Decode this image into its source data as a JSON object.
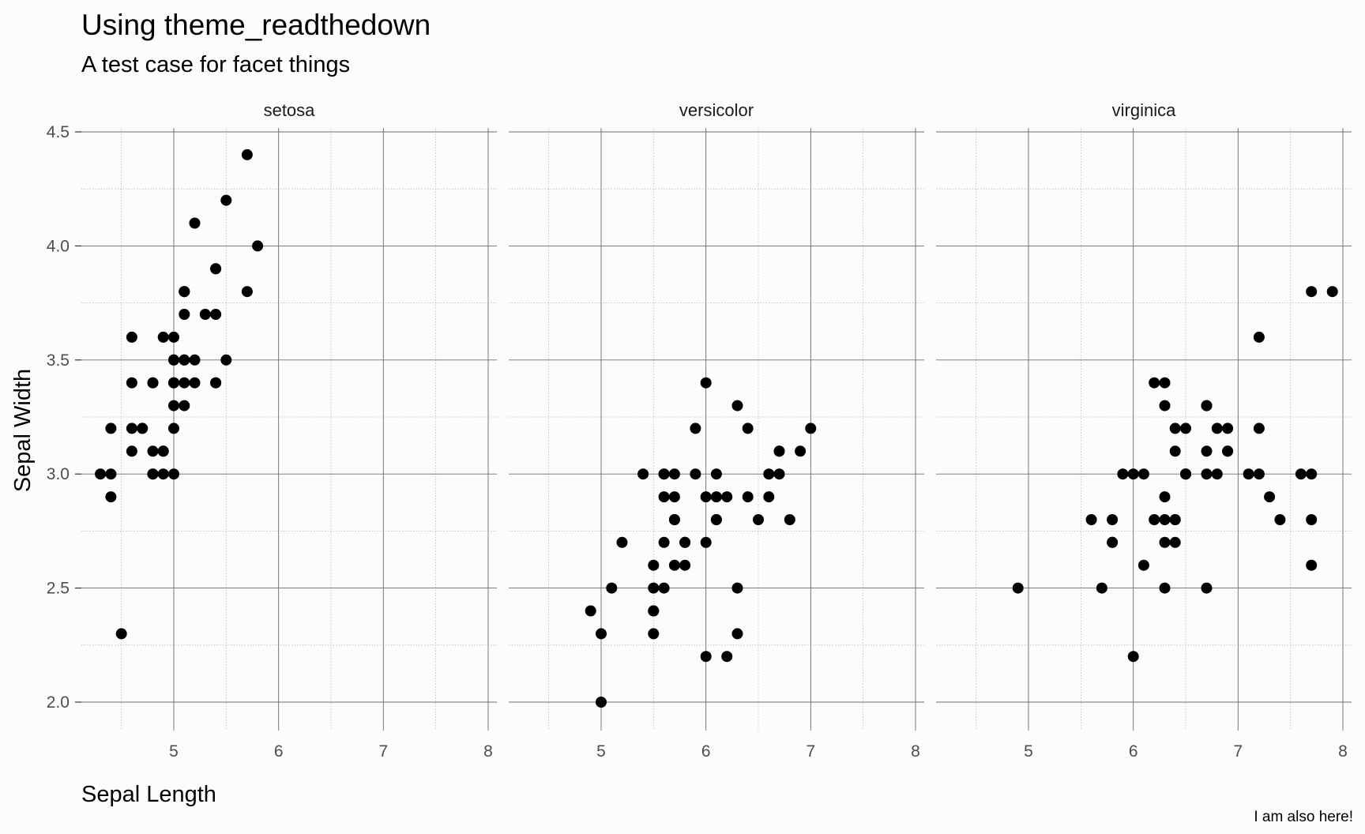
{
  "title": "Using theme_readthedown",
  "subtitle": "A test case for facet things",
  "caption": "I am also here!",
  "chart_data": {
    "type": "scatter",
    "title": "Using theme_readthedown",
    "subtitle": "A test case for facet things",
    "xlabel": "Sepal Length",
    "ylabel": "Sepal Width",
    "xlim": [
      4.3,
      8.0
    ],
    "ylim": [
      2.0,
      4.4
    ],
    "x_ticks": [
      5,
      6,
      7,
      8
    ],
    "y_ticks": [
      2.0,
      2.5,
      3.0,
      3.5,
      4.0,
      4.5
    ],
    "x_tick_labels": [
      "5",
      "6",
      "7",
      "8"
    ],
    "y_tick_labels": [
      "2.0",
      "2.5",
      "3.0",
      "3.5",
      "4.0",
      "4.5"
    ],
    "grid": true,
    "facets": [
      {
        "name": "setosa",
        "points": [
          [
            5.1,
            3.5
          ],
          [
            4.9,
            3.0
          ],
          [
            4.7,
            3.2
          ],
          [
            4.6,
            3.1
          ],
          [
            5.0,
            3.6
          ],
          [
            5.4,
            3.9
          ],
          [
            4.6,
            3.4
          ],
          [
            5.0,
            3.4
          ],
          [
            4.4,
            2.9
          ],
          [
            4.9,
            3.1
          ],
          [
            5.4,
            3.7
          ],
          [
            4.8,
            3.4
          ],
          [
            4.8,
            3.0
          ],
          [
            4.3,
            3.0
          ],
          [
            5.8,
            4.0
          ],
          [
            5.7,
            4.4
          ],
          [
            5.4,
            3.9
          ],
          [
            5.1,
            3.5
          ],
          [
            5.7,
            3.8
          ],
          [
            5.1,
            3.8
          ],
          [
            5.4,
            3.4
          ],
          [
            5.1,
            3.7
          ],
          [
            4.6,
            3.6
          ],
          [
            5.1,
            3.3
          ],
          [
            4.8,
            3.4
          ],
          [
            5.0,
            3.0
          ],
          [
            5.0,
            3.4
          ],
          [
            5.2,
            3.5
          ],
          [
            5.2,
            3.4
          ],
          [
            4.7,
            3.2
          ],
          [
            4.8,
            3.1
          ],
          [
            5.4,
            3.4
          ],
          [
            5.2,
            4.1
          ],
          [
            5.5,
            4.2
          ],
          [
            4.9,
            3.1
          ],
          [
            5.0,
            3.2
          ],
          [
            5.5,
            3.5
          ],
          [
            4.9,
            3.6
          ],
          [
            4.4,
            3.0
          ],
          [
            5.1,
            3.4
          ],
          [
            5.0,
            3.5
          ],
          [
            4.5,
            2.3
          ],
          [
            4.4,
            3.2
          ],
          [
            5.0,
            3.5
          ],
          [
            5.1,
            3.8
          ],
          [
            4.8,
            3.0
          ],
          [
            5.1,
            3.8
          ],
          [
            4.6,
            3.2
          ],
          [
            5.3,
            3.7
          ],
          [
            5.0,
            3.3
          ]
        ]
      },
      {
        "name": "versicolor",
        "points": [
          [
            7.0,
            3.2
          ],
          [
            6.4,
            3.2
          ],
          [
            6.9,
            3.1
          ],
          [
            5.5,
            2.3
          ],
          [
            6.5,
            2.8
          ],
          [
            5.7,
            2.8
          ],
          [
            6.3,
            3.3
          ],
          [
            4.9,
            2.4
          ],
          [
            6.6,
            2.9
          ],
          [
            5.2,
            2.7
          ],
          [
            5.0,
            2.0
          ],
          [
            5.9,
            3.0
          ],
          [
            6.0,
            2.2
          ],
          [
            6.1,
            2.9
          ],
          [
            5.6,
            2.9
          ],
          [
            6.7,
            3.1
          ],
          [
            5.6,
            3.0
          ],
          [
            5.8,
            2.7
          ],
          [
            6.2,
            2.2
          ],
          [
            5.6,
            2.5
          ],
          [
            5.9,
            3.2
          ],
          [
            6.1,
            2.8
          ],
          [
            6.3,
            2.5
          ],
          [
            6.1,
            2.8
          ],
          [
            6.4,
            2.9
          ],
          [
            6.6,
            3.0
          ],
          [
            6.8,
            2.8
          ],
          [
            6.7,
            3.0
          ],
          [
            6.0,
            2.9
          ],
          [
            5.7,
            2.6
          ],
          [
            5.5,
            2.4
          ],
          [
            5.5,
            2.4
          ],
          [
            5.8,
            2.7
          ],
          [
            6.0,
            2.7
          ],
          [
            5.4,
            3.0
          ],
          [
            6.0,
            3.4
          ],
          [
            6.7,
            3.1
          ],
          [
            6.3,
            2.3
          ],
          [
            5.6,
            3.0
          ],
          [
            5.5,
            2.5
          ],
          [
            5.5,
            2.6
          ],
          [
            6.1,
            3.0
          ],
          [
            5.8,
            2.6
          ],
          [
            5.0,
            2.3
          ],
          [
            5.6,
            2.7
          ],
          [
            5.7,
            3.0
          ],
          [
            5.7,
            2.9
          ],
          [
            6.2,
            2.9
          ],
          [
            5.1,
            2.5
          ],
          [
            5.7,
            2.8
          ]
        ]
      },
      {
        "name": "virginica",
        "points": [
          [
            6.3,
            3.3
          ],
          [
            5.8,
            2.7
          ],
          [
            7.1,
            3.0
          ],
          [
            6.3,
            2.9
          ],
          [
            6.5,
            3.0
          ],
          [
            7.6,
            3.0
          ],
          [
            4.9,
            2.5
          ],
          [
            7.3,
            2.9
          ],
          [
            6.7,
            2.5
          ],
          [
            7.2,
            3.6
          ],
          [
            6.5,
            3.2
          ],
          [
            6.4,
            2.7
          ],
          [
            6.8,
            3.0
          ],
          [
            5.7,
            2.5
          ],
          [
            5.8,
            2.8
          ],
          [
            6.4,
            3.2
          ],
          [
            6.5,
            3.0
          ],
          [
            7.7,
            3.8
          ],
          [
            7.7,
            2.6
          ],
          [
            6.0,
            2.2
          ],
          [
            6.9,
            3.2
          ],
          [
            5.6,
            2.8
          ],
          [
            7.7,
            2.8
          ],
          [
            6.3,
            2.7
          ],
          [
            6.7,
            3.3
          ],
          [
            7.2,
            3.2
          ],
          [
            6.2,
            2.8
          ],
          [
            6.1,
            3.0
          ],
          [
            6.4,
            2.8
          ],
          [
            7.2,
            3.0
          ],
          [
            7.4,
            2.8
          ],
          [
            7.9,
            3.8
          ],
          [
            6.4,
            2.8
          ],
          [
            6.3,
            2.8
          ],
          [
            6.1,
            2.6
          ],
          [
            7.7,
            3.0
          ],
          [
            6.3,
            3.4
          ],
          [
            6.4,
            3.1
          ],
          [
            6.0,
            3.0
          ],
          [
            6.9,
            3.1
          ],
          [
            6.7,
            3.1
          ],
          [
            6.9,
            3.1
          ],
          [
            5.8,
            2.7
          ],
          [
            6.8,
            3.2
          ],
          [
            6.7,
            3.3
          ],
          [
            6.7,
            3.0
          ],
          [
            6.3,
            2.5
          ],
          [
            6.5,
            3.0
          ],
          [
            6.2,
            3.4
          ],
          [
            5.9,
            3.0
          ]
        ]
      }
    ]
  }
}
